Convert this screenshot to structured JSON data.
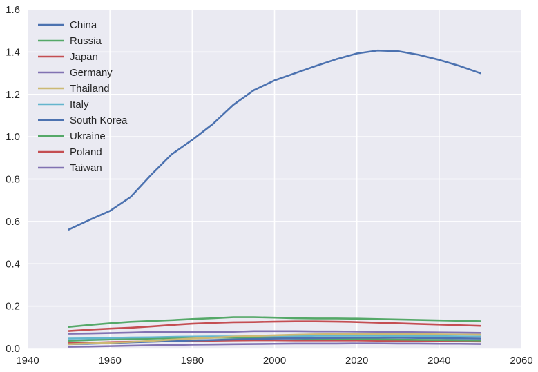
{
  "chart_data": {
    "type": "line",
    "title": "",
    "xlabel": "",
    "ylabel": "",
    "xlim": [
      1940,
      2060
    ],
    "ylim": [
      0,
      1.6
    ],
    "xticks": [
      "1940",
      "1960",
      "1980",
      "2000",
      "2020",
      "2040",
      "2060"
    ],
    "yticks": [
      "0.0",
      "0.2",
      "0.4",
      "0.6",
      "0.8",
      "1.0",
      "1.2",
      "1.4",
      "1.6"
    ],
    "grid": true,
    "legend_position": "top-left",
    "x": [
      1950,
      1955,
      1960,
      1965,
      1970,
      1975,
      1980,
      1985,
      1990,
      1995,
      2000,
      2005,
      2010,
      2015,
      2020,
      2025,
      2030,
      2035,
      2040,
      2045,
      2050
    ],
    "series": [
      {
        "name": "China",
        "color": "#4C72B0",
        "values": [
          0.562,
          0.607,
          0.65,
          0.715,
          0.82,
          0.917,
          0.985,
          1.06,
          1.151,
          1.22,
          1.266,
          1.3,
          1.334,
          1.366,
          1.393,
          1.407,
          1.404,
          1.387,
          1.363,
          1.334,
          1.3
        ]
      },
      {
        "name": "Russia",
        "color": "#55A868",
        "values": [
          0.102,
          0.111,
          0.119,
          0.126,
          0.13,
          0.134,
          0.139,
          0.143,
          0.148,
          0.148,
          0.146,
          0.143,
          0.142,
          0.142,
          0.141,
          0.139,
          0.137,
          0.135,
          0.133,
          0.131,
          0.129
        ]
      },
      {
        "name": "Japan",
        "color": "#C44E52",
        "values": [
          0.083,
          0.089,
          0.094,
          0.098,
          0.104,
          0.111,
          0.117,
          0.121,
          0.124,
          0.125,
          0.127,
          0.128,
          0.128,
          0.127,
          0.125,
          0.122,
          0.119,
          0.116,
          0.113,
          0.11,
          0.107
        ]
      },
      {
        "name": "Germany",
        "color": "#8172B2",
        "values": [
          0.07,
          0.071,
          0.073,
          0.075,
          0.078,
          0.079,
          0.078,
          0.078,
          0.079,
          0.082,
          0.082,
          0.082,
          0.081,
          0.081,
          0.08,
          0.079,
          0.078,
          0.077,
          0.076,
          0.075,
          0.074
        ]
      },
      {
        "name": "Thailand",
        "color": "#CCB974",
        "values": [
          0.02,
          0.024,
          0.027,
          0.031,
          0.036,
          0.042,
          0.047,
          0.051,
          0.056,
          0.059,
          0.062,
          0.065,
          0.067,
          0.068,
          0.069,
          0.069,
          0.069,
          0.068,
          0.067,
          0.066,
          0.065
        ]
      },
      {
        "name": "Italy",
        "color": "#64B5CD",
        "values": [
          0.047,
          0.048,
          0.05,
          0.052,
          0.053,
          0.055,
          0.056,
          0.057,
          0.057,
          0.057,
          0.057,
          0.058,
          0.06,
          0.06,
          0.06,
          0.06,
          0.059,
          0.059,
          0.058,
          0.057,
          0.056
        ]
      },
      {
        "name": "South Korea",
        "color": "#4C72B0",
        "values": [
          0.02,
          0.022,
          0.025,
          0.029,
          0.032,
          0.035,
          0.038,
          0.04,
          0.043,
          0.045,
          0.047,
          0.048,
          0.049,
          0.05,
          0.051,
          0.051,
          0.051,
          0.05,
          0.049,
          0.048,
          0.047
        ]
      },
      {
        "name": "Ukraine",
        "color": "#55A868",
        "values": [
          0.037,
          0.04,
          0.043,
          0.045,
          0.047,
          0.049,
          0.05,
          0.051,
          0.052,
          0.051,
          0.049,
          0.047,
          0.046,
          0.045,
          0.044,
          0.043,
          0.042,
          0.041,
          0.04,
          0.039,
          0.038
        ]
      },
      {
        "name": "Poland",
        "color": "#C44E52",
        "values": [
          0.025,
          0.027,
          0.03,
          0.032,
          0.033,
          0.034,
          0.036,
          0.037,
          0.038,
          0.039,
          0.039,
          0.038,
          0.038,
          0.038,
          0.038,
          0.037,
          0.036,
          0.036,
          0.035,
          0.034,
          0.033
        ]
      },
      {
        "name": "Taiwan",
        "color": "#8172B2",
        "values": [
          0.008,
          0.009,
          0.011,
          0.013,
          0.015,
          0.016,
          0.018,
          0.019,
          0.02,
          0.021,
          0.022,
          0.023,
          0.023,
          0.023,
          0.024,
          0.024,
          0.023,
          0.023,
          0.022,
          0.022,
          0.021
        ]
      }
    ]
  }
}
